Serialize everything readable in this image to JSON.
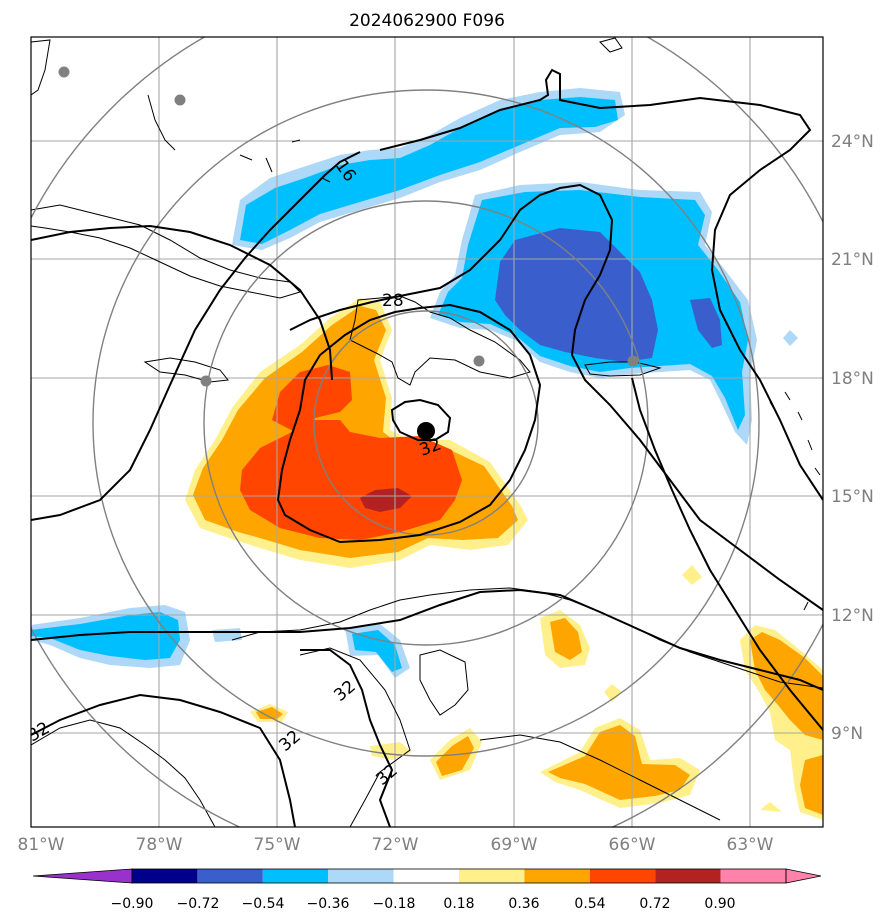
{
  "title": "2024062900 F096",
  "map": {
    "lon_ticks": [
      "81°W",
      "78°W",
      "75°W",
      "72°W",
      "69°W",
      "66°W",
      "63°W"
    ],
    "lat_ticks": [
      "24°N",
      "21°N",
      "18°N",
      "15°N",
      "12°N",
      "9°N"
    ],
    "contour_labels": [
      "16",
      "28",
      "32",
      "32",
      "32",
      "32",
      "32"
    ],
    "colors": {
      "n090": "#9932cc",
      "n072": "#00008b",
      "n054": "#3a5fcd",
      "n036": "#00bfff",
      "n018": "#add8f8",
      "p018": "#fff08c",
      "p036": "#ffa500",
      "p054": "#ff4500",
      "p072": "#b22222",
      "p090": "#ff82ab",
      "city": "#808080",
      "center": "#000000"
    }
  },
  "colorbar": {
    "labels": [
      "−0.90",
      "−0.72",
      "−0.54",
      "−0.36",
      "−0.18",
      "0.18",
      "0.36",
      "0.54",
      "0.72",
      "0.90"
    ],
    "colors": [
      "#9932cc",
      "#00008b",
      "#3a5fcd",
      "#00bfff",
      "#add8f8",
      "#ffffff",
      "#fff08c",
      "#ffa500",
      "#ff4500",
      "#b22222",
      "#ff82ab",
      "#ff82ab"
    ]
  }
}
